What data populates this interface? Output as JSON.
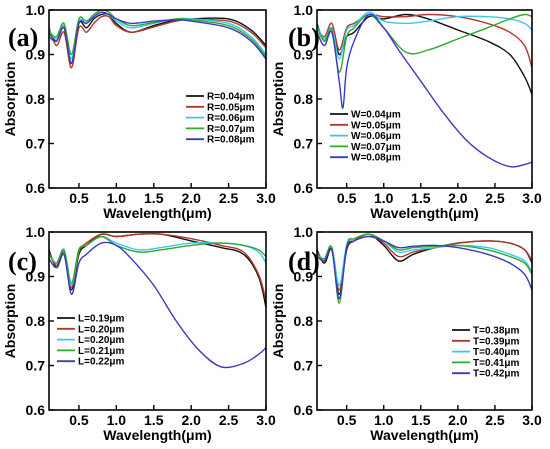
{
  "chart_data": [
    {
      "type": "line",
      "panel": "(a)",
      "xlabel": "Wavelength(μm)",
      "ylabel": "Absorption",
      "xlim": [
        0.1,
        3.0
      ],
      "ylim": [
        0.6,
        1.0
      ],
      "xticks": [
        "0.5",
        "1.0",
        "1.5",
        "2.0",
        "2.5",
        "3.0"
      ],
      "yticks": [
        "0.6",
        "0.7",
        "0.8",
        "0.9",
        "1.0"
      ],
      "legend_position": "middle-right",
      "series": [
        {
          "name": "R=0.04μm",
          "color": "#111111",
          "x": [
            0.1,
            0.2,
            0.3,
            0.4,
            0.5,
            0.6,
            0.7,
            0.8,
            0.9,
            1.0,
            1.2,
            1.5,
            1.8,
            2.0,
            2.5,
            2.8,
            3.0
          ],
          "y": [
            0.95,
            0.93,
            0.96,
            0.88,
            0.97,
            0.96,
            0.98,
            0.99,
            0.99,
            0.97,
            0.95,
            0.965,
            0.978,
            0.98,
            0.98,
            0.955,
            0.92
          ]
        },
        {
          "name": "R=0.05μm",
          "color": "#b0392b",
          "x": [
            0.1,
            0.2,
            0.3,
            0.4,
            0.5,
            0.6,
            0.7,
            0.8,
            0.9,
            1.0,
            1.2,
            1.5,
            1.8,
            2.0,
            2.5,
            2.8,
            3.0
          ],
          "y": [
            0.96,
            0.92,
            0.95,
            0.87,
            0.96,
            0.95,
            0.97,
            0.985,
            0.985,
            0.965,
            0.95,
            0.962,
            0.975,
            0.978,
            0.975,
            0.95,
            0.915
          ]
        },
        {
          "name": "R=0.06μm",
          "color": "#3cc8ec",
          "x": [
            0.1,
            0.2,
            0.3,
            0.4,
            0.5,
            0.6,
            0.7,
            0.8,
            0.9,
            1.0,
            1.2,
            1.5,
            1.8,
            2.0,
            2.5,
            2.8,
            3.0
          ],
          "y": [
            0.955,
            0.935,
            0.965,
            0.89,
            0.975,
            0.97,
            0.985,
            0.995,
            0.99,
            0.975,
            0.96,
            0.97,
            0.98,
            0.98,
            0.97,
            0.94,
            0.9
          ]
        },
        {
          "name": "R=0.07μm",
          "color": "#2faa2f",
          "x": [
            0.1,
            0.2,
            0.3,
            0.4,
            0.5,
            0.6,
            0.7,
            0.8,
            0.9,
            1.0,
            1.2,
            1.5,
            1.8,
            2.0,
            2.5,
            2.8,
            3.0
          ],
          "y": [
            0.95,
            0.94,
            0.97,
            0.9,
            0.98,
            0.975,
            0.99,
            1.0,
            0.995,
            0.98,
            0.965,
            0.972,
            0.98,
            0.978,
            0.965,
            0.935,
            0.895
          ]
        },
        {
          "name": "R=0.08μm",
          "color": "#3a3ac0",
          "x": [
            0.1,
            0.2,
            0.3,
            0.4,
            0.5,
            0.6,
            0.7,
            0.8,
            0.9,
            1.0,
            1.2,
            1.5,
            1.8,
            2.0,
            2.5,
            2.8,
            3.0
          ],
          "y": [
            0.94,
            0.93,
            0.96,
            0.88,
            0.97,
            0.97,
            0.985,
            0.995,
            0.99,
            0.98,
            0.97,
            0.975,
            0.978,
            0.975,
            0.96,
            0.93,
            0.89
          ]
        }
      ]
    },
    {
      "type": "line",
      "panel": "(b)",
      "xlabel": "Wavelength(μm)",
      "ylabel": "Absorption",
      "xlim": [
        0.1,
        3.0
      ],
      "ylim": [
        0.6,
        1.0
      ],
      "xticks": [
        "0.5",
        "1.0",
        "1.5",
        "2.0",
        "2.5",
        "3.0"
      ],
      "yticks": [
        "0.6",
        "0.7",
        "0.8",
        "0.9",
        "1.0"
      ],
      "legend_position": "middle-left",
      "series": [
        {
          "name": "W=0.04μm",
          "color": "#111111",
          "x": [
            0.1,
            0.2,
            0.3,
            0.4,
            0.5,
            0.6,
            0.8,
            1.0,
            1.3,
            1.6,
            2.0,
            2.4,
            2.7,
            2.9,
            3.0
          ],
          "y": [
            0.97,
            0.93,
            0.96,
            0.9,
            0.94,
            0.95,
            0.985,
            0.98,
            0.99,
            0.98,
            0.955,
            0.93,
            0.9,
            0.85,
            0.81
          ]
        },
        {
          "name": "W=0.05μm",
          "color": "#b0392b",
          "x": [
            0.1,
            0.2,
            0.3,
            0.4,
            0.5,
            0.6,
            0.8,
            1.0,
            1.3,
            1.6,
            2.0,
            2.4,
            2.7,
            2.9,
            3.0
          ],
          "y": [
            0.96,
            0.94,
            0.97,
            0.91,
            0.96,
            0.97,
            0.99,
            0.985,
            0.985,
            0.99,
            0.985,
            0.97,
            0.95,
            0.92,
            0.87
          ]
        },
        {
          "name": "W=0.06μm",
          "color": "#3cc8ec",
          "x": [
            0.1,
            0.2,
            0.3,
            0.4,
            0.5,
            0.6,
            0.8,
            1.0,
            1.3,
            1.6,
            2.0,
            2.4,
            2.7,
            2.9,
            3.0
          ],
          "y": [
            0.965,
            0.935,
            0.96,
            0.89,
            0.955,
            0.965,
            0.995,
            0.975,
            0.97,
            0.975,
            0.985,
            0.985,
            0.98,
            0.97,
            0.955
          ]
        },
        {
          "name": "W=0.07μm",
          "color": "#2faa2f",
          "x": [
            0.1,
            0.2,
            0.3,
            0.4,
            0.5,
            0.6,
            0.8,
            1.0,
            1.3,
            1.6,
            2.0,
            2.4,
            2.7,
            2.9,
            3.0
          ],
          "y": [
            0.96,
            0.93,
            0.955,
            0.86,
            0.94,
            0.96,
            0.99,
            0.96,
            0.905,
            0.91,
            0.935,
            0.96,
            0.98,
            0.99,
            0.985
          ]
        },
        {
          "name": "W=0.08μm",
          "color": "#3a3ac0",
          "x": [
            0.1,
            0.2,
            0.3,
            0.4,
            0.45,
            0.5,
            0.6,
            0.8,
            1.0,
            1.2,
            1.5,
            1.8,
            2.1,
            2.4,
            2.7,
            2.9,
            3.0
          ],
          "y": [
            0.95,
            0.92,
            0.95,
            0.84,
            0.78,
            0.87,
            0.93,
            0.99,
            0.96,
            0.91,
            0.84,
            0.77,
            0.71,
            0.67,
            0.648,
            0.653,
            0.658
          ]
        }
      ]
    },
    {
      "type": "line",
      "panel": "(c)",
      "xlabel": "Wavelength(μm)",
      "ylabel": "Absorption",
      "xlim": [
        0.1,
        3.0
      ],
      "ylim": [
        0.6,
        1.0
      ],
      "xticks": [
        "0.5",
        "1.0",
        "1.5",
        "2.0",
        "2.5",
        "3.0"
      ],
      "yticks": [
        "0.6",
        "0.7",
        "0.8",
        "0.9",
        "1.0"
      ],
      "legend_position": "middle-left",
      "series": [
        {
          "name": "L=0.19μm",
          "color": "#111111",
          "x": [
            0.1,
            0.2,
            0.3,
            0.4,
            0.5,
            0.6,
            0.8,
            1.0,
            1.3,
            1.6,
            2.0,
            2.4,
            2.7,
            2.9,
            3.0
          ],
          "y": [
            0.96,
            0.92,
            0.95,
            0.87,
            0.95,
            0.97,
            0.995,
            0.99,
            0.995,
            0.995,
            0.98,
            0.965,
            0.95,
            0.9,
            0.83
          ]
        },
        {
          "name": "L=0.20μm",
          "color": "#b0392b",
          "x": [
            0.1,
            0.2,
            0.3,
            0.4,
            0.5,
            0.6,
            0.8,
            1.0,
            1.3,
            1.6,
            2.0,
            2.4,
            2.7,
            2.9,
            3.0
          ],
          "y": [
            0.955,
            0.925,
            0.955,
            0.875,
            0.955,
            0.975,
            0.995,
            0.99,
            0.995,
            0.995,
            0.985,
            0.97,
            0.955,
            0.905,
            0.845
          ]
        },
        {
          "name": "L=0.20μm",
          "color": "#3cc8ec",
          "x": [
            0.1,
            0.2,
            0.3,
            0.4,
            0.5,
            0.6,
            0.8,
            1.0,
            1.3,
            1.6,
            2.0,
            2.4,
            2.7,
            2.9,
            3.0
          ],
          "y": [
            0.95,
            0.93,
            0.96,
            0.88,
            0.96,
            0.97,
            0.99,
            0.975,
            0.96,
            0.965,
            0.975,
            0.975,
            0.97,
            0.955,
            0.93
          ]
        },
        {
          "name": "L=0.21μm",
          "color": "#2faa2f",
          "x": [
            0.1,
            0.2,
            0.3,
            0.4,
            0.5,
            0.6,
            0.8,
            1.0,
            1.3,
            1.6,
            2.0,
            2.4,
            2.7,
            2.9,
            3.0
          ],
          "y": [
            0.95,
            0.93,
            0.96,
            0.885,
            0.96,
            0.97,
            0.99,
            0.97,
            0.955,
            0.96,
            0.97,
            0.975,
            0.97,
            0.96,
            0.945
          ]
        },
        {
          "name": "L=0.22μm",
          "color": "#3a3ac0",
          "x": [
            0.1,
            0.2,
            0.3,
            0.4,
            0.5,
            0.6,
            0.8,
            1.0,
            1.2,
            1.5,
            1.8,
            2.1,
            2.4,
            2.7,
            2.9,
            3.0
          ],
          "y": [
            0.94,
            0.92,
            0.95,
            0.86,
            0.93,
            0.95,
            0.975,
            0.97,
            0.94,
            0.88,
            0.8,
            0.735,
            0.697,
            0.705,
            0.725,
            0.74
          ]
        }
      ]
    },
    {
      "type": "line",
      "panel": "(d)",
      "xlabel": "Wavelength(μm)",
      "ylabel": "Absorption",
      "xlim": [
        0.1,
        3.0
      ],
      "ylim": [
        0.6,
        1.0
      ],
      "xticks": [
        "0.5",
        "1.0",
        "1.5",
        "2.0",
        "2.5",
        "3.0"
      ],
      "yticks": [
        "0.6",
        "0.7",
        "0.8",
        "0.9",
        "1.0"
      ],
      "legend_position": "middle-right",
      "series": [
        {
          "name": "T=0.38μm",
          "color": "#111111",
          "x": [
            0.1,
            0.2,
            0.3,
            0.4,
            0.5,
            0.6,
            0.8,
            1.0,
            1.2,
            1.4,
            1.7,
            2.0,
            2.4,
            2.7,
            2.9,
            3.0
          ],
          "y": [
            0.96,
            0.93,
            0.96,
            0.86,
            0.96,
            0.98,
            0.995,
            0.97,
            0.935,
            0.95,
            0.965,
            0.975,
            0.98,
            0.975,
            0.96,
            0.93
          ]
        },
        {
          "name": "T=0.39μm",
          "color": "#b0392b",
          "x": [
            0.1,
            0.2,
            0.3,
            0.4,
            0.5,
            0.6,
            0.8,
            1.0,
            1.2,
            1.4,
            1.7,
            2.0,
            2.4,
            2.7,
            2.9,
            3.0
          ],
          "y": [
            0.955,
            0.935,
            0.965,
            0.87,
            0.965,
            0.98,
            0.995,
            0.975,
            0.945,
            0.955,
            0.965,
            0.975,
            0.98,
            0.975,
            0.96,
            0.935
          ]
        },
        {
          "name": "T=0.40μm",
          "color": "#3cc8ec",
          "x": [
            0.1,
            0.2,
            0.3,
            0.4,
            0.5,
            0.6,
            0.8,
            1.0,
            1.2,
            1.4,
            1.7,
            2.0,
            2.4,
            2.7,
            2.9,
            3.0
          ],
          "y": [
            0.95,
            0.94,
            0.965,
            0.88,
            0.97,
            0.985,
            0.995,
            0.98,
            0.955,
            0.96,
            0.965,
            0.97,
            0.965,
            0.95,
            0.935,
            0.91
          ]
        },
        {
          "name": "T=0.41μm",
          "color": "#2faa2f",
          "x": [
            0.1,
            0.2,
            0.3,
            0.4,
            0.5,
            0.6,
            0.8,
            1.0,
            1.2,
            1.4,
            1.7,
            2.0,
            2.4,
            2.7,
            2.9,
            3.0
          ],
          "y": [
            0.95,
            0.94,
            0.965,
            0.84,
            0.97,
            0.985,
            0.995,
            0.98,
            0.96,
            0.965,
            0.968,
            0.97,
            0.96,
            0.945,
            0.93,
            0.905
          ]
        },
        {
          "name": "T=0.42μm",
          "color": "#3a3ac0",
          "x": [
            0.1,
            0.2,
            0.3,
            0.4,
            0.5,
            0.6,
            0.8,
            1.0,
            1.2,
            1.4,
            1.7,
            2.0,
            2.4,
            2.7,
            2.9,
            3.0
          ],
          "y": [
            0.945,
            0.935,
            0.96,
            0.85,
            0.965,
            0.98,
            0.99,
            0.98,
            0.965,
            0.968,
            0.97,
            0.965,
            0.95,
            0.93,
            0.905,
            0.87
          ]
        }
      ]
    }
  ]
}
